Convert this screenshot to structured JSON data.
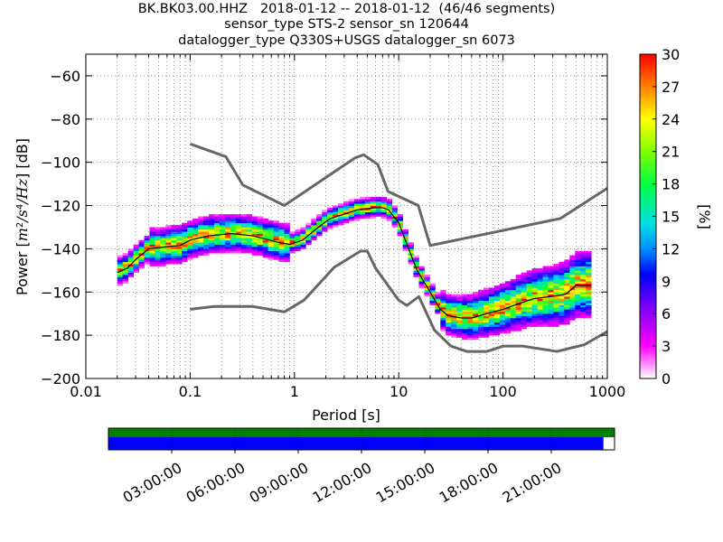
{
  "chart_data": {
    "type": "heatmap",
    "title_lines": [
      "BK.BK03.00.HHZ   2018-01-12 -- 2018-01-12  (46/46 segments)",
      "sensor_type STS-2 sensor_sn 120644",
      "datalogger_type Q330S+USGS datalogger_sn 6073"
    ],
    "xlabel": "Period [s]",
    "ylabel": "Power [m²/s⁴/Hz] [dB]",
    "x_scale": "log",
    "xlim": [
      0.01,
      1000
    ],
    "ylim": [
      -200,
      -50
    ],
    "x_ticks": [
      0.01,
      0.1,
      1,
      10,
      100,
      1000
    ],
    "x_tick_labels": [
      "0.01",
      "0.1",
      "1",
      "10",
      "100",
      "1000"
    ],
    "y_ticks": [
      -200,
      -180,
      -160,
      -140,
      -120,
      -100,
      -80,
      -60
    ],
    "y_tick_labels": [
      "−200",
      "−180",
      "−160",
      "−140",
      "−120",
      "−100",
      "−80",
      "−60"
    ],
    "grid": true,
    "colorbar": {
      "label": "[%]",
      "range": [
        0,
        30
      ],
      "ticks": [
        0,
        3,
        6,
        9,
        12,
        15,
        18,
        21,
        24,
        27,
        30
      ],
      "tick_labels": [
        "0",
        "3",
        "6",
        "9",
        "12",
        "15",
        "18",
        "21",
        "24",
        "27",
        "30"
      ]
    },
    "nhnm": {
      "name": "high noise model",
      "x": [
        0.1,
        0.22,
        0.32,
        0.8,
        3.8,
        4.6,
        6.3,
        7.9,
        15.4,
        20,
        354.8,
        1000
      ],
      "y": [
        -91.5,
        -97.4,
        -110.5,
        -120,
        -98,
        -96.5,
        -101,
        -113.5,
        -120,
        -138.5,
        -126,
        -112
      ]
    },
    "nlnm": {
      "name": "low noise model",
      "x": [
        0.1,
        0.17,
        0.4,
        0.8,
        1.24,
        2.4,
        4.3,
        5,
        6,
        10,
        12,
        15.6,
        21.9,
        31.6,
        45,
        70,
        101,
        154,
        328,
        600,
        1000
      ],
      "y": [
        -168,
        -166.7,
        -166.7,
        -169.2,
        -163.7,
        -148.6,
        -141.1,
        -141.1,
        -149,
        -163.8,
        -166.2,
        -162.1,
        -177.5,
        -185,
        -187.5,
        -187.5,
        -185,
        -185,
        -187.5,
        -184.4,
        -178.3
      ]
    },
    "median_curve": {
      "name": "median",
      "x": [
        0.02,
        0.025,
        0.03,
        0.04,
        0.06,
        0.08,
        0.1,
        0.15,
        0.25,
        0.4,
        0.7,
        0.9,
        1.2,
        1.6,
        2.2,
        3,
        4,
        5,
        6,
        7,
        8,
        10,
        12,
        15,
        20,
        25,
        30,
        40,
        50,
        70,
        100,
        150,
        200,
        300,
        400,
        500,
        700
      ],
      "y": [
        -151,
        -149,
        -145,
        -140,
        -139,
        -138.5,
        -136,
        -134,
        -133,
        -134,
        -137,
        -138,
        -136,
        -131,
        -126,
        -124,
        -122,
        -121.5,
        -121,
        -121,
        -122,
        -128,
        -138,
        -150,
        -160,
        -168,
        -171,
        -172,
        -172,
        -170,
        -168,
        -165,
        -163,
        -162,
        -161,
        -157,
        -157
      ]
    },
    "time_coverage": {
      "tick_labels": [
        "03:00:00",
        "06:00:00",
        "09:00:00",
        "12:00:00",
        "15:00:00",
        "18:00:00",
        "21:00:00"
      ],
      "tick_hours": [
        3,
        6,
        9,
        12,
        15,
        18,
        21
      ],
      "total_hours": 24,
      "data_coverage_fraction": 1.0,
      "psd_coverage_fraction": 0.978,
      "colors": {
        "data": "#008000",
        "psd": "#0000ff"
      }
    },
    "colors": {
      "model_line": "#666666",
      "median_line": "#000000",
      "grid": "#555555"
    }
  }
}
